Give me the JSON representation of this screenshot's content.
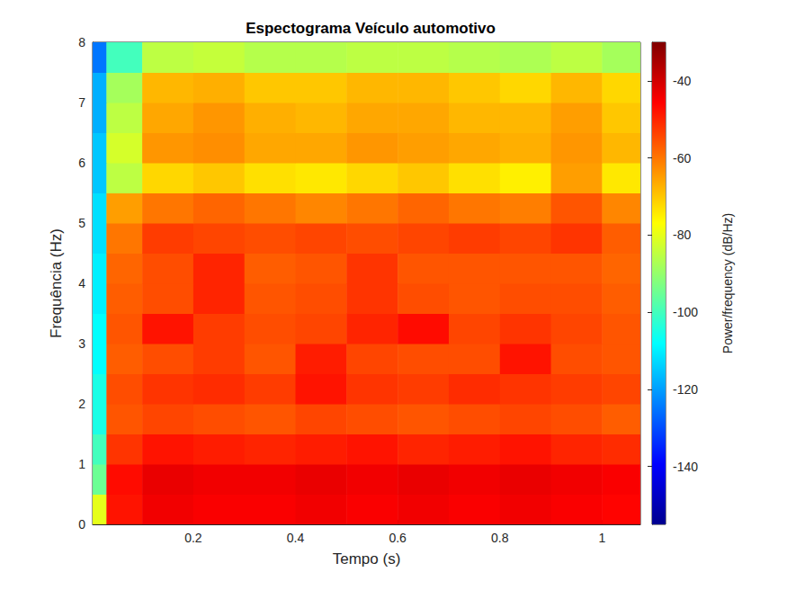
{
  "chart_data": {
    "type": "spectrogram",
    "title": "Espectograma Veículo automotivo",
    "x_label": "Tempo (s)",
    "y_label": "Frequência (Hz)",
    "xlim": [
      0.003,
      1.075
    ],
    "xticks": [
      0.2,
      0.4,
      0.6,
      0.8,
      1
    ],
    "ylim": [
      0,
      8
    ],
    "yticks": [
      0,
      1,
      2,
      3,
      4,
      5,
      6,
      7,
      8
    ],
    "time_edges": [
      0.003,
      0.03,
      0.1,
      0.2,
      0.3,
      0.4,
      0.5,
      0.6,
      0.7,
      0.8,
      0.9,
      1.0,
      1.075
    ],
    "freq_edges": [
      0,
      0.5,
      1,
      1.5,
      2,
      2.5,
      3,
      3.5,
      4,
      4.5,
      5,
      5.5,
      6,
      6.5,
      7,
      7.5,
      8
    ],
    "cells": [
      [
        -80,
        -48,
        -44,
        -45,
        -45,
        -44,
        -45,
        -44,
        -45,
        -44,
        -45,
        -46
      ],
      [
        -95,
        -47,
        -43,
        -44,
        -44,
        -43,
        -44,
        -43,
        -44,
        -43,
        -44,
        -45
      ],
      [
        -100,
        -52,
        -48,
        -49,
        -50,
        -49,
        -48,
        -50,
        -49,
        -48,
        -50,
        -51
      ],
      [
        -105,
        -56,
        -54,
        -55,
        -56,
        -54,
        -55,
        -56,
        -55,
        -54,
        -55,
        -57
      ],
      [
        -105,
        -55,
        -52,
        -51,
        -53,
        -48,
        -52,
        -53,
        -51,
        -52,
        -53,
        -54
      ],
      [
        -108,
        -57,
        -55,
        -53,
        -56,
        -49,
        -54,
        -55,
        -55,
        -48,
        -55,
        -56
      ],
      [
        -108,
        -56,
        -48,
        -53,
        -55,
        -54,
        -50,
        -47,
        -54,
        -52,
        -54,
        -56
      ],
      [
        -110,
        -57,
        -55,
        -50,
        -56,
        -55,
        -52,
        -55,
        -56,
        -55,
        -55,
        -57
      ],
      [
        -110,
        -58,
        -55,
        -50,
        -57,
        -56,
        -52,
        -56,
        -56,
        -56,
        -56,
        -58
      ],
      [
        -112,
        -60,
        -53,
        -54,
        -55,
        -54,
        -55,
        -54,
        -53,
        -54,
        -52,
        -57
      ],
      [
        -112,
        -65,
        -60,
        -58,
        -60,
        -62,
        -60,
        -58,
        -60,
        -61,
        -56,
        -62
      ],
      [
        -115,
        -85,
        -72,
        -70,
        -73,
        -74,
        -72,
        -70,
        -73,
        -75,
        -65,
        -74
      ],
      [
        -115,
        -82,
        -64,
        -63,
        -66,
        -66,
        -64,
        -65,
        -66,
        -67,
        -64,
        -68
      ],
      [
        -118,
        -85,
        -66,
        -64,
        -67,
        -68,
        -66,
        -66,
        -68,
        -68,
        -65,
        -70
      ],
      [
        -118,
        -88,
        -68,
        -67,
        -70,
        -70,
        -68,
        -68,
        -70,
        -72,
        -68,
        -72
      ],
      [
        -125,
        -100,
        -85,
        -84,
        -86,
        -86,
        -85,
        -85,
        -86,
        -87,
        -85,
        -88
      ]
    ],
    "colorbar": {
      "label": "Power/frequency (dB/Hz)",
      "range": [
        -155,
        -30
      ],
      "ticks": [
        -140,
        -120,
        -100,
        -80,
        -60,
        -40
      ]
    }
  }
}
